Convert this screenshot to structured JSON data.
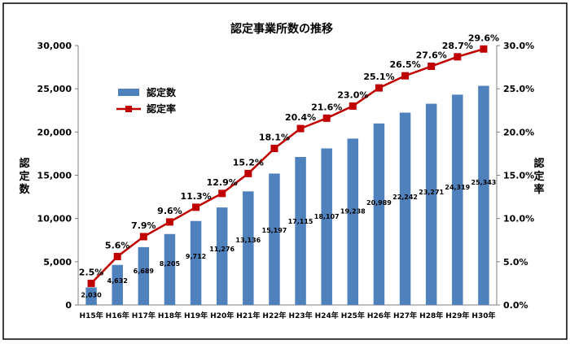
{
  "chart_data": {
    "type": "bar",
    "title": "認定事業所数の推移",
    "categories": [
      "H15年",
      "H16年",
      "H17年",
      "H18年",
      "H19年",
      "H20年",
      "H21年",
      "H22年",
      "H23年",
      "H24年",
      "H25年",
      "H26年",
      "H27年",
      "H28年",
      "H29年",
      "H30年"
    ],
    "series": [
      {
        "name": "認定数",
        "type": "bar",
        "axis": "left",
        "color": "#4f81bd",
        "values": [
          2030,
          4632,
          6689,
          8205,
          9712,
          11276,
          13136,
          15197,
          17115,
          18107,
          19238,
          20989,
          22242,
          23271,
          24319,
          25343
        ],
        "labels": [
          "2,030",
          "4,632",
          "6,689",
          "8,205",
          "9,712",
          "11,276",
          "13,136",
          "15,197",
          "17,115",
          "18,107",
          "19,238",
          "20,989",
          "22,242",
          "23,271",
          "24,319",
          "25,343"
        ]
      },
      {
        "name": "認定率",
        "type": "line",
        "axis": "right",
        "color": "#c00000",
        "values": [
          2.5,
          5.6,
          7.9,
          9.6,
          11.3,
          12.9,
          15.2,
          18.1,
          20.4,
          21.6,
          23.0,
          25.1,
          26.5,
          27.6,
          28.7,
          29.6
        ],
        "labels": [
          "2.5%",
          "5.6%",
          "7.9%",
          "9.6%",
          "11.3%",
          "12.9%",
          "15.2%",
          "18.1%",
          "20.4%",
          "21.6%",
          "23.0%",
          "25.1%",
          "26.5%",
          "27.6%",
          "28.7%",
          "29.6%"
        ]
      }
    ],
    "y_left": {
      "label": "認定数",
      "range": [
        0,
        30000
      ],
      "ticks": [
        0,
        5000,
        10000,
        15000,
        20000,
        25000,
        30000
      ],
      "tick_labels": [
        "0",
        "5,000",
        "10,000",
        "15,000",
        "20,000",
        "25,000",
        "30,000"
      ]
    },
    "y_right": {
      "label": "認定率",
      "range": [
        0,
        30
      ],
      "ticks": [
        0,
        5,
        10,
        15,
        20,
        25,
        30
      ],
      "tick_labels": [
        "0.0%",
        "5.0%",
        "10.0%",
        "15.0%",
        "20.0%",
        "25.0%",
        "30.0%"
      ]
    },
    "grid": false,
    "legend": {
      "position": "top-left",
      "entries": [
        "認定数",
        "認定率"
      ]
    }
  }
}
